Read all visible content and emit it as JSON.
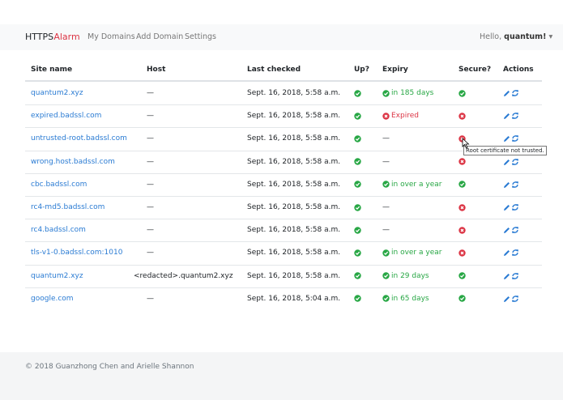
{
  "navbar": {
    "brand": [
      "HTTPS",
      "Alarm"
    ],
    "links": [
      "My Domains",
      "Add Domain",
      "Settings"
    ],
    "greeting": "Hello,",
    "user": "quantum!"
  },
  "table": {
    "headers": [
      "Site name",
      "Host",
      "Last checked",
      "Up?",
      "Expiry",
      "Secure?",
      "Actions"
    ],
    "rows": [
      [
        "quantum2.xyz",
        "—",
        "Sept. 16, 2018, 5:58 a.m.",
        "in 185 days"
      ],
      [
        "expired.badssl.com",
        "—",
        "Sept. 16, 2018, 5:58 a.m.",
        "Expired"
      ],
      [
        "untrusted-root.badssl.com",
        "—",
        "Sept. 16, 2018, 5:58 a.m.",
        "—"
      ],
      [
        "wrong.host.badssl.com",
        "—",
        "Sept. 16, 2018, 5:58 a.m.",
        "—"
      ],
      [
        "cbc.badssl.com",
        "—",
        "Sept. 16, 2018, 5:58 a.m.",
        "in over a year"
      ],
      [
        "rc4-md5.badssl.com",
        "—",
        "Sept. 16, 2018, 5:58 a.m.",
        "—"
      ],
      [
        "rc4.badssl.com",
        "—",
        "Sept. 16, 2018, 5:58 a.m.",
        "—"
      ],
      [
        "tls-v1-0.badssl.com:1010",
        "—",
        "Sept. 16, 2018, 5:58 a.m.",
        "in over a year"
      ],
      [
        "quantum2.xyz",
        "<redacted>.quantum2.xyz",
        "Sept. 16, 2018, 5:58 a.m.",
        "in 29 days"
      ],
      [
        "google.com",
        "—",
        "Sept. 16, 2018, 5:04 a.m.",
        "in 65 days"
      ]
    ]
  },
  "tooltip": "Root certificate not trusted.",
  "footer": "© 2018 Guanzhong Chen and Arielle Shannon"
}
